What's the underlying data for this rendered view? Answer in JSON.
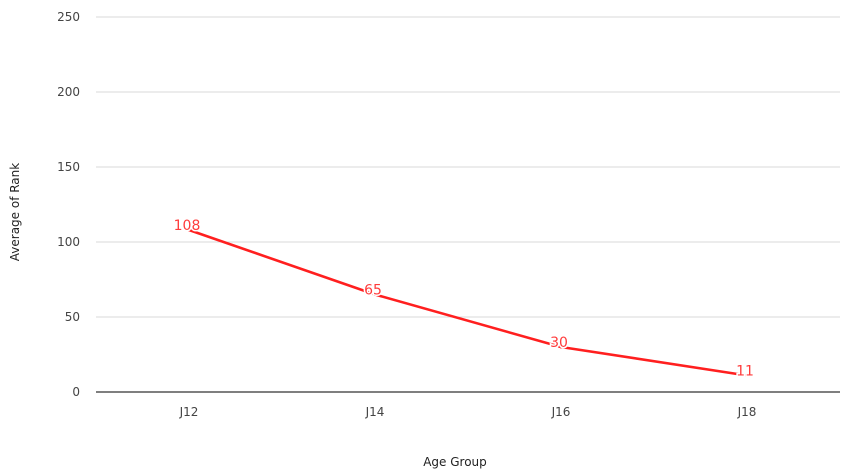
{
  "chart_data": {
    "type": "line",
    "categories": [
      "J12",
      "J14",
      "J16",
      "J18"
    ],
    "series": [
      {
        "values": [
          108,
          65,
          30,
          11
        ]
      }
    ],
    "data_labels": [
      "108",
      "65",
      "30",
      "11"
    ],
    "title": "",
    "xlabel": "Age Group",
    "ylabel": "Average of Rank",
    "ylim": [
      0,
      250
    ],
    "yticks": [
      0,
      50,
      100,
      150,
      200,
      250
    ],
    "grid": true,
    "legend": "none",
    "line_color": "#ff1f1f",
    "label_color": "#ff3b3b"
  }
}
